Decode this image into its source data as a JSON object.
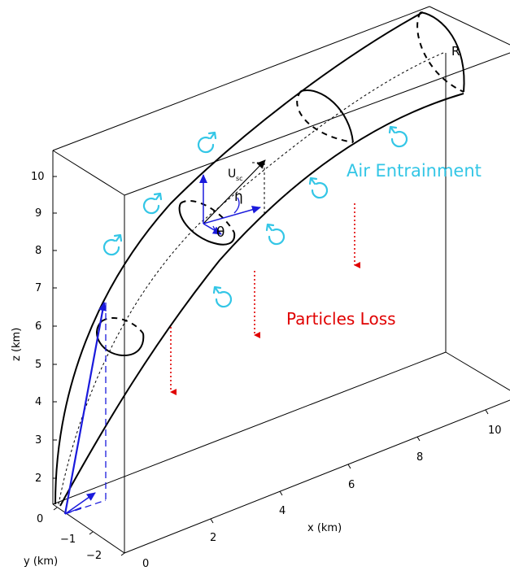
{
  "labels": {
    "radius": "R",
    "velocity_main": "U",
    "velocity_sub": "sc",
    "eta": "η",
    "theta": "θ",
    "air_entrainment": "Air Entrainment",
    "particles_loss": "Particles Loss"
  },
  "axes": {
    "z": {
      "label": "z (km)",
      "ticks": [
        "10",
        "9",
        "8",
        "7",
        "6",
        "5",
        "4",
        "3",
        "2",
        "1"
      ]
    },
    "y": {
      "label": "y (km)",
      "ticks": [
        "0",
        "−1",
        "−2"
      ]
    },
    "x": {
      "label": "x (km)",
      "ticks": [
        "0",
        "2",
        "4",
        "6",
        "8",
        "10"
      ]
    }
  },
  "colors": {
    "entrainment": "#33c6e6",
    "particles": "#e00000",
    "vectors": "#1a1adc",
    "lines": "#000000"
  },
  "icons": {
    "vortex": "swirl-arrow-icon",
    "loss": "dotted-down-arrow-icon"
  }
}
